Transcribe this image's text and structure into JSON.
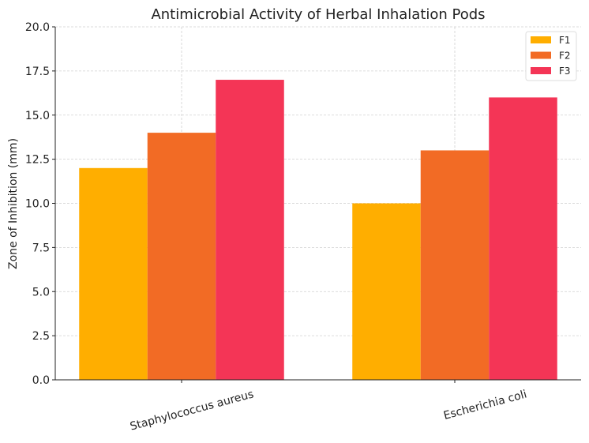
{
  "chart_data": {
    "type": "bar",
    "title": "Antimicrobial Activity of Herbal Inhalation Pods",
    "xlabel": "",
    "ylabel": "Zone of Inhibition (mm)",
    "categories": [
      "Staphylococcus aureus",
      "Escherichia coli"
    ],
    "series": [
      {
        "name": "F1",
        "values": [
          12,
          10
        ],
        "color": "#ffae00"
      },
      {
        "name": "F2",
        "values": [
          14,
          13
        ],
        "color": "#f26b25"
      },
      {
        "name": "F3",
        "values": [
          17,
          16
        ],
        "color": "#f43556"
      }
    ],
    "ylim": [
      0,
      20
    ],
    "yticks": [
      "0.0",
      "2.5",
      "5.0",
      "7.5",
      "10.0",
      "12.5",
      "15.0",
      "17.5",
      "20.0"
    ],
    "grid": true,
    "legend": "top-right"
  }
}
